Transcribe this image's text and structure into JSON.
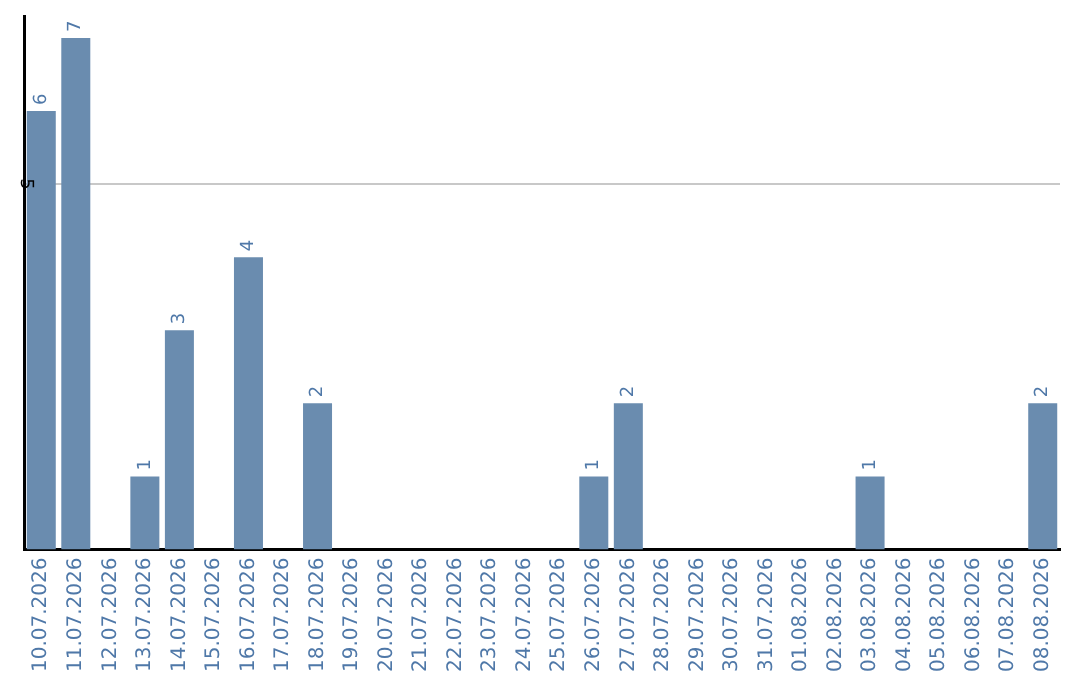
{
  "chart_data": {
    "type": "bar",
    "categories": [
      "10.07.2026",
      "11.07.2026",
      "12.07.2026",
      "13.07.2026",
      "14.07.2026",
      "15.07.2026",
      "16.07.2026",
      "17.07.2026",
      "18.07.2026",
      "19.07.2026",
      "20.07.2026",
      "21.07.2026",
      "22.07.2026",
      "23.07.2026",
      "24.07.2026",
      "25.07.2026",
      "26.07.2026",
      "27.07.2026",
      "28.07.2026",
      "29.07.2026",
      "30.07.2026",
      "31.07.2026",
      "01.08.2026",
      "02.08.2026",
      "03.08.2026",
      "04.08.2026",
      "05.08.2026",
      "06.08.2026",
      "07.08.2026",
      "08.08.2026"
    ],
    "values": [
      6,
      7,
      0,
      1,
      3,
      0,
      4,
      0,
      2,
      0,
      0,
      0,
      0,
      0,
      0,
      0,
      1,
      2,
      0,
      0,
      0,
      0,
      0,
      0,
      1,
      0,
      0,
      0,
      0,
      2
    ],
    "value_labels": [
      "6",
      "7",
      null,
      "1",
      "3",
      null,
      "4",
      null,
      "2",
      null,
      null,
      null,
      null,
      null,
      null,
      null,
      "1",
      "2",
      null,
      null,
      null,
      null,
      null,
      null,
      "1",
      null,
      null,
      null,
      null,
      "2"
    ],
    "color": "#6a8caf",
    "ylim": [
      0,
      7.3
    ],
    "yticks": [
      5
    ],
    "grid": "y",
    "legend": false
  }
}
